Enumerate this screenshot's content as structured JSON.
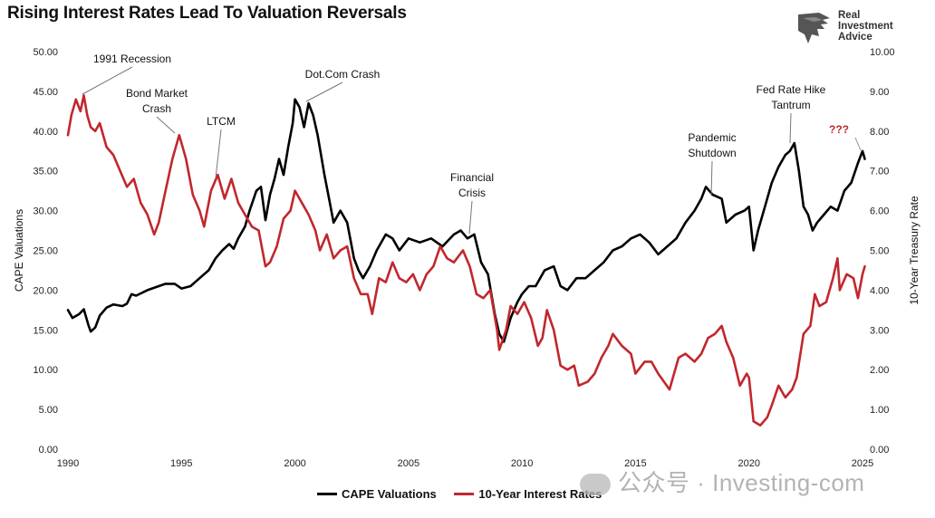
{
  "chart_data": {
    "type": "line",
    "title": "Rising Interest Rates Lead To Valuation Reversals",
    "xlabel": "",
    "ylabel_left": "CAPE Valuations",
    "ylabel_right": "10-Year Treasury Rate",
    "xlim": [
      1990,
      2025
    ],
    "ylim_left": [
      0,
      50
    ],
    "ylim_right": [
      0,
      10
    ],
    "x_ticks": [
      "1990",
      "1995",
      "2000",
      "2005",
      "2010",
      "2015",
      "2020",
      "2025"
    ],
    "y_ticks_left": [
      "0.00",
      "5.00",
      "10.00",
      "15.00",
      "20.00",
      "25.00",
      "30.00",
      "35.00",
      "40.00",
      "45.00",
      "50.00"
    ],
    "y_ticks_right": [
      "0.00",
      "1.00",
      "2.00",
      "3.00",
      "4.00",
      "5.00",
      "6.00",
      "7.00",
      "8.00",
      "9.00",
      "10.00"
    ],
    "grid": false,
    "legend_position": "bottom-center",
    "series": [
      {
        "name": "CAPE Valuations",
        "axis": "left",
        "color": "#000000",
        "points": [
          [
            1990.0,
            17.5
          ],
          [
            1990.2,
            16.5
          ],
          [
            1990.5,
            17.0
          ],
          [
            1990.7,
            17.6
          ],
          [
            1990.9,
            15.6
          ],
          [
            1991.0,
            14.8
          ],
          [
            1991.2,
            15.3
          ],
          [
            1991.4,
            16.8
          ],
          [
            1991.7,
            17.8
          ],
          [
            1992.0,
            18.2
          ],
          [
            1992.4,
            18.0
          ],
          [
            1992.6,
            18.3
          ],
          [
            1992.8,
            19.5
          ],
          [
            1993.0,
            19.3
          ],
          [
            1993.5,
            20.0
          ],
          [
            1994.0,
            20.5
          ],
          [
            1994.3,
            20.8
          ],
          [
            1994.7,
            20.8
          ],
          [
            1995.0,
            20.2
          ],
          [
            1995.4,
            20.5
          ],
          [
            1995.8,
            21.5
          ],
          [
            1996.2,
            22.5
          ],
          [
            1996.5,
            24.0
          ],
          [
            1996.8,
            25.0
          ],
          [
            1997.1,
            25.8
          ],
          [
            1997.3,
            25.2
          ],
          [
            1997.5,
            26.5
          ],
          [
            1997.8,
            28.0
          ],
          [
            1998.0,
            30.0
          ],
          [
            1998.3,
            32.5
          ],
          [
            1998.5,
            33.0
          ],
          [
            1998.7,
            28.8
          ],
          [
            1998.9,
            32.0
          ],
          [
            1999.1,
            34.0
          ],
          [
            1999.3,
            36.5
          ],
          [
            1999.5,
            34.5
          ],
          [
            1999.7,
            38.0
          ],
          [
            1999.9,
            41.0
          ],
          [
            2000.0,
            44.0
          ],
          [
            2000.2,
            43.0
          ],
          [
            2000.4,
            40.5
          ],
          [
            2000.6,
            43.5
          ],
          [
            2000.8,
            42.0
          ],
          [
            2001.0,
            39.5
          ],
          [
            2001.3,
            34.5
          ],
          [
            2001.5,
            31.5
          ],
          [
            2001.7,
            28.5
          ],
          [
            2002.0,
            30.0
          ],
          [
            2002.3,
            28.5
          ],
          [
            2002.6,
            24.0
          ],
          [
            2002.8,
            22.5
          ],
          [
            2003.0,
            21.5
          ],
          [
            2003.3,
            23.0
          ],
          [
            2003.6,
            25.0
          ],
          [
            2004.0,
            27.0
          ],
          [
            2004.3,
            26.5
          ],
          [
            2004.6,
            25.0
          ],
          [
            2005.0,
            26.5
          ],
          [
            2005.5,
            26.0
          ],
          [
            2006.0,
            26.5
          ],
          [
            2006.5,
            25.5
          ],
          [
            2007.0,
            27.0
          ],
          [
            2007.3,
            27.5
          ],
          [
            2007.6,
            26.5
          ],
          [
            2007.9,
            27.0
          ],
          [
            2008.2,
            23.5
          ],
          [
            2008.5,
            22.0
          ],
          [
            2008.8,
            17.0
          ],
          [
            2009.0,
            14.5
          ],
          [
            2009.2,
            13.5
          ],
          [
            2009.5,
            16.5
          ],
          [
            2009.8,
            18.5
          ],
          [
            2010.0,
            19.5
          ],
          [
            2010.3,
            20.5
          ],
          [
            2010.6,
            20.5
          ],
          [
            2011.0,
            22.5
          ],
          [
            2011.4,
            23.0
          ],
          [
            2011.7,
            20.5
          ],
          [
            2012.0,
            20.0
          ],
          [
            2012.4,
            21.5
          ],
          [
            2012.8,
            21.5
          ],
          [
            2013.2,
            22.5
          ],
          [
            2013.6,
            23.5
          ],
          [
            2014.0,
            25.0
          ],
          [
            2014.4,
            25.5
          ],
          [
            2014.8,
            26.5
          ],
          [
            2015.2,
            27.0
          ],
          [
            2015.6,
            26.0
          ],
          [
            2016.0,
            24.5
          ],
          [
            2016.4,
            25.5
          ],
          [
            2016.8,
            26.5
          ],
          [
            2017.2,
            28.5
          ],
          [
            2017.6,
            30.0
          ],
          [
            2017.9,
            31.5
          ],
          [
            2018.1,
            33.0
          ],
          [
            2018.4,
            32.0
          ],
          [
            2018.8,
            31.5
          ],
          [
            2019.0,
            28.5
          ],
          [
            2019.4,
            29.5
          ],
          [
            2019.8,
            30.0
          ],
          [
            2020.0,
            30.5
          ],
          [
            2020.2,
            25.0
          ],
          [
            2020.4,
            27.5
          ],
          [
            2020.7,
            30.5
          ],
          [
            2021.0,
            33.5
          ],
          [
            2021.3,
            35.5
          ],
          [
            2021.6,
            37.0
          ],
          [
            2021.8,
            37.5
          ],
          [
            2022.0,
            38.5
          ],
          [
            2022.2,
            35.0
          ],
          [
            2022.4,
            30.5
          ],
          [
            2022.6,
            29.5
          ],
          [
            2022.8,
            27.5
          ],
          [
            2023.0,
            28.5
          ],
          [
            2023.3,
            29.5
          ],
          [
            2023.6,
            30.5
          ],
          [
            2023.9,
            30.0
          ],
          [
            2024.2,
            32.5
          ],
          [
            2024.5,
            33.5
          ],
          [
            2024.8,
            36.0
          ],
          [
            2025.0,
            37.5
          ],
          [
            2025.1,
            36.5
          ]
        ]
      },
      {
        "name": "10-Year Interest Rates",
        "axis": "right",
        "color": "#c1272d",
        "points": [
          [
            1990.0,
            7.9
          ],
          [
            1990.15,
            8.4
          ],
          [
            1990.35,
            8.8
          ],
          [
            1990.55,
            8.5
          ],
          [
            1990.7,
            8.9
          ],
          [
            1990.85,
            8.4
          ],
          [
            1991.0,
            8.1
          ],
          [
            1991.2,
            8.0
          ],
          [
            1991.4,
            8.2
          ],
          [
            1991.7,
            7.6
          ],
          [
            1992.0,
            7.4
          ],
          [
            1992.3,
            7.0
          ],
          [
            1992.6,
            6.6
          ],
          [
            1992.9,
            6.8
          ],
          [
            1993.2,
            6.2
          ],
          [
            1993.5,
            5.9
          ],
          [
            1993.8,
            5.4
          ],
          [
            1994.0,
            5.7
          ],
          [
            1994.3,
            6.5
          ],
          [
            1994.6,
            7.3
          ],
          [
            1994.9,
            7.9
          ],
          [
            1995.2,
            7.3
          ],
          [
            1995.5,
            6.4
          ],
          [
            1995.8,
            6.0
          ],
          [
            1996.0,
            5.6
          ],
          [
            1996.3,
            6.5
          ],
          [
            1996.6,
            6.9
          ],
          [
            1996.9,
            6.3
          ],
          [
            1997.2,
            6.8
          ],
          [
            1997.5,
            6.2
          ],
          [
            1997.8,
            5.9
          ],
          [
            1998.1,
            5.6
          ],
          [
            1998.4,
            5.5
          ],
          [
            1998.7,
            4.6
          ],
          [
            1998.9,
            4.7
          ],
          [
            1999.2,
            5.1
          ],
          [
            1999.5,
            5.8
          ],
          [
            1999.8,
            6.0
          ],
          [
            2000.0,
            6.5
          ],
          [
            2000.3,
            6.2
          ],
          [
            2000.6,
            5.9
          ],
          [
            2000.9,
            5.5
          ],
          [
            2001.1,
            5.0
          ],
          [
            2001.4,
            5.4
          ],
          [
            2001.7,
            4.8
          ],
          [
            2002.0,
            5.0
          ],
          [
            2002.3,
            5.1
          ],
          [
            2002.6,
            4.3
          ],
          [
            2002.9,
            3.9
          ],
          [
            2003.2,
            3.9
          ],
          [
            2003.4,
            3.4
          ],
          [
            2003.7,
            4.3
          ],
          [
            2004.0,
            4.2
          ],
          [
            2004.3,
            4.7
          ],
          [
            2004.6,
            4.3
          ],
          [
            2004.9,
            4.2
          ],
          [
            2005.2,
            4.4
          ],
          [
            2005.5,
            4.0
          ],
          [
            2005.8,
            4.4
          ],
          [
            2006.1,
            4.6
          ],
          [
            2006.4,
            5.1
          ],
          [
            2006.7,
            4.8
          ],
          [
            2007.0,
            4.7
          ],
          [
            2007.4,
            5.0
          ],
          [
            2007.7,
            4.6
          ],
          [
            2008.0,
            3.9
          ],
          [
            2008.3,
            3.8
          ],
          [
            2008.6,
            4.0
          ],
          [
            2008.9,
            3.0
          ],
          [
            2009.0,
            2.5
          ],
          [
            2009.3,
            3.0
          ],
          [
            2009.5,
            3.6
          ],
          [
            2009.8,
            3.4
          ],
          [
            2010.1,
            3.7
          ],
          [
            2010.4,
            3.3
          ],
          [
            2010.7,
            2.6
          ],
          [
            2010.9,
            2.8
          ],
          [
            2011.1,
            3.5
          ],
          [
            2011.4,
            3.0
          ],
          [
            2011.7,
            2.1
          ],
          [
            2012.0,
            2.0
          ],
          [
            2012.3,
            2.1
          ],
          [
            2012.5,
            1.6
          ],
          [
            2012.9,
            1.7
          ],
          [
            2013.2,
            1.9
          ],
          [
            2013.5,
            2.3
          ],
          [
            2013.8,
            2.6
          ],
          [
            2014.0,
            2.9
          ],
          [
            2014.4,
            2.6
          ],
          [
            2014.8,
            2.4
          ],
          [
            2015.0,
            1.9
          ],
          [
            2015.4,
            2.2
          ],
          [
            2015.7,
            2.2
          ],
          [
            2016.0,
            1.9
          ],
          [
            2016.5,
            1.5
          ],
          [
            2016.9,
            2.3
          ],
          [
            2017.2,
            2.4
          ],
          [
            2017.6,
            2.2
          ],
          [
            2017.9,
            2.4
          ],
          [
            2018.2,
            2.8
          ],
          [
            2018.5,
            2.9
          ],
          [
            2018.8,
            3.1
          ],
          [
            2019.0,
            2.7
          ],
          [
            2019.3,
            2.3
          ],
          [
            2019.6,
            1.6
          ],
          [
            2019.9,
            1.9
          ],
          [
            2020.0,
            1.8
          ],
          [
            2020.2,
            0.7
          ],
          [
            2020.5,
            0.6
          ],
          [
            2020.8,
            0.8
          ],
          [
            2021.0,
            1.1
          ],
          [
            2021.3,
            1.6
          ],
          [
            2021.6,
            1.3
          ],
          [
            2021.9,
            1.5
          ],
          [
            2022.1,
            1.8
          ],
          [
            2022.4,
            2.9
          ],
          [
            2022.7,
            3.1
          ],
          [
            2022.9,
            3.9
          ],
          [
            2023.1,
            3.6
          ],
          [
            2023.4,
            3.7
          ],
          [
            2023.7,
            4.3
          ],
          [
            2023.9,
            4.8
          ],
          [
            2024.0,
            4.0
          ],
          [
            2024.3,
            4.4
          ],
          [
            2024.6,
            4.3
          ],
          [
            2024.8,
            3.8
          ],
          [
            2025.0,
            4.4
          ],
          [
            2025.1,
            4.6
          ]
        ]
      }
    ],
    "annotations": [
      {
        "text": "1991 Recession",
        "x": 1990.75,
        "y": 44.5,
        "axis": "left"
      },
      {
        "text": "Bond Market",
        "text2": "Crash",
        "x": 1994.8,
        "y": 39.5,
        "axis": "left"
      },
      {
        "text": "LTCM",
        "x": 1996.5,
        "y": 34.0,
        "axis": "left"
      },
      {
        "text": "Dot.Com Crash",
        "x": 2000.3,
        "y": 44.0,
        "axis": "left"
      },
      {
        "text": "Financial",
        "text2": "Crisis",
        "x": 2008.0,
        "y": 27.0,
        "axis": "left"
      },
      {
        "text": "Pandemic",
        "text2": "Shutdown",
        "x": 2018.4,
        "y": 32.5,
        "axis": "left"
      },
      {
        "text": "Fed Rate Hike",
        "text2": "Tantrum",
        "x": 2021.9,
        "y": 38.5,
        "axis": "left"
      },
      {
        "text": "???",
        "x": 2025.0,
        "y": 37.5,
        "axis": "left",
        "color": "#c1272d"
      }
    ]
  },
  "logo": {
    "line1": "Real",
    "line2": "Investment",
    "line3": "Advice",
    "color": "#333333"
  },
  "watermark": {
    "text": "公众号 · Investing-com"
  }
}
